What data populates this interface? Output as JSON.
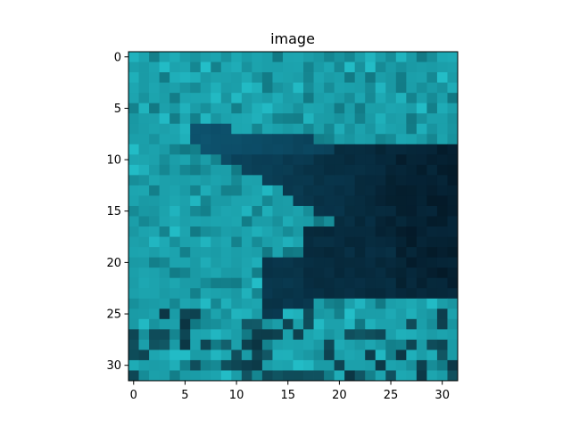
{
  "figure": {
    "title": "image",
    "x_ticks": [
      "0",
      "5",
      "10",
      "15",
      "20",
      "25",
      "30"
    ],
    "y_ticks": [
      "0",
      "5",
      "10",
      "15",
      "20",
      "25",
      "30"
    ]
  },
  "image_content": {
    "grid_size": 32,
    "description_colors": {
      "water": "#1a9aa5",
      "water_light": "#24c2cc",
      "water_dark": "#0f6f7a",
      "shark_body": "#0b4563",
      "shark_shadow": "#041a28"
    }
  }
}
